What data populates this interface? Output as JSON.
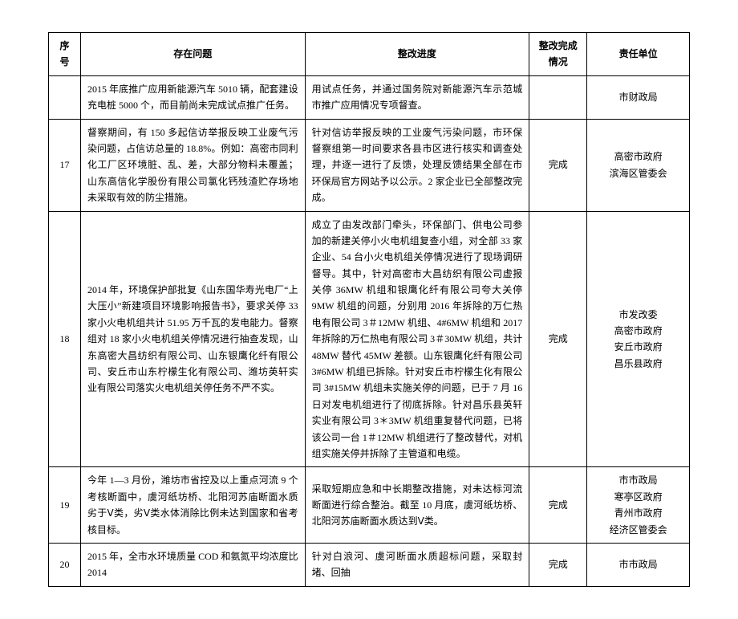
{
  "headers": {
    "seq": "序号",
    "problem": "存在问题",
    "progress": "整改进度",
    "status": "整改完成情况",
    "dept": "责任单位"
  },
  "rows": [
    {
      "seq": "",
      "problem": "2015 年底推广应用新能源汽车 5010 辆，配套建设充电桩 5000 个，而目前尚未完成试点推广任务。",
      "progress": "用试点任务，并通过国务院对新能源汽车示范城市推广应用情况专项督查。",
      "status": "",
      "dept": "市财政局"
    },
    {
      "seq": "17",
      "problem": "督察期间，有 150 多起信访举报反映工业废气污染问题，占信访总量的 18.8%。例如：高密市同利化工厂区环境脏、乱、差，大部分物料未覆盖；山东高信化学股份有限公司氯化钙残渣贮存场地未采取有效的防尘措施。",
      "progress": "针对信访举报反映的工业废气污染问题，市环保督察组第一时间要求各县市区进行核实和调查处理，并逐一进行了反馈，处理反馈结果全部在市环保局官方网站予以公示。2 家企业已全部整改完成。",
      "status": "完成",
      "dept": "高密市政府\n滨海区管委会"
    },
    {
      "seq": "18",
      "problem": "2014 年，环境保护部批复《山东国华寿光电厂“上大压小”新建项目环境影响报告书》，要求关停 33 家小火电机组共计 51.95 万千瓦的发电能力。督察组对 18 家小火电机组关停情况进行抽查发现，山东高密大昌纺织有限公司、山东银鹰化纤有限公司、安丘市山东柠檬生化有限公司、潍坊英轩实业有限公司落实火电机组关停任务不严不实。",
      "progress": "成立了由发改部门牵头，环保部门、供电公司参加的新建关停小火电机组复查小组，对全部 33 家企业、54 台小火电机组关停情况进行了现场调研督导。其中，针对高密市大昌纺织有限公司虚报关停 36MW 机组和银鹰化纤有限公司夸大关停 9MW 机组的问题，分别用 2016 年拆除的万仁热电有限公司 3＃12MW 机组、4#6MW 机组和 2017 年拆除的万仁热电有限公司 3＃30MW 机组，共计 48MW 替代 45MW 差额。山东银鹰化纤有限公司 3#6MW 机组已拆除。针对安丘市柠檬生化有限公司 3#15MW 机组未实施关停的问题，已于 7 月 16 日对发电机组进行了彻底拆除。针对昌乐县英轩实业有限公司 3＊3MW 机组重复替代问题，已将该公司一台 1＃12MW 机组进行了整改替代，对机组实施关停并拆除了主管道和电缆。",
      "status": "完成",
      "dept": "市发改委\n高密市政府\n安丘市政府\n昌乐县政府"
    },
    {
      "seq": "19",
      "problem": "今年 1—3 月份，潍坊市省控及以上重点河流 9 个考核断面中，虞河纸坊桥、北阳河苏庙断面水质劣于Ⅴ类，劣Ⅴ类水体消除比例未达到国家和省考核目标。",
      "progress": "采取短期应急和中长期整改措施，对未达标河流断面进行综合整治。截至 10 月底，虞河纸坊桥、北阳河苏庙断面水质达到Ⅴ类。",
      "status": "完成",
      "dept": "市市政局\n寒亭区政府\n青州市政府\n经济区管委会"
    },
    {
      "seq": "20",
      "problem": "2015 年，全市水环境质量 COD 和氨氮平均浓度比 2014",
      "progress": "针对白浪河、虞河断面水质超标问题，采取封堵、回抽",
      "status": "完成",
      "dept": "市市政局"
    }
  ]
}
